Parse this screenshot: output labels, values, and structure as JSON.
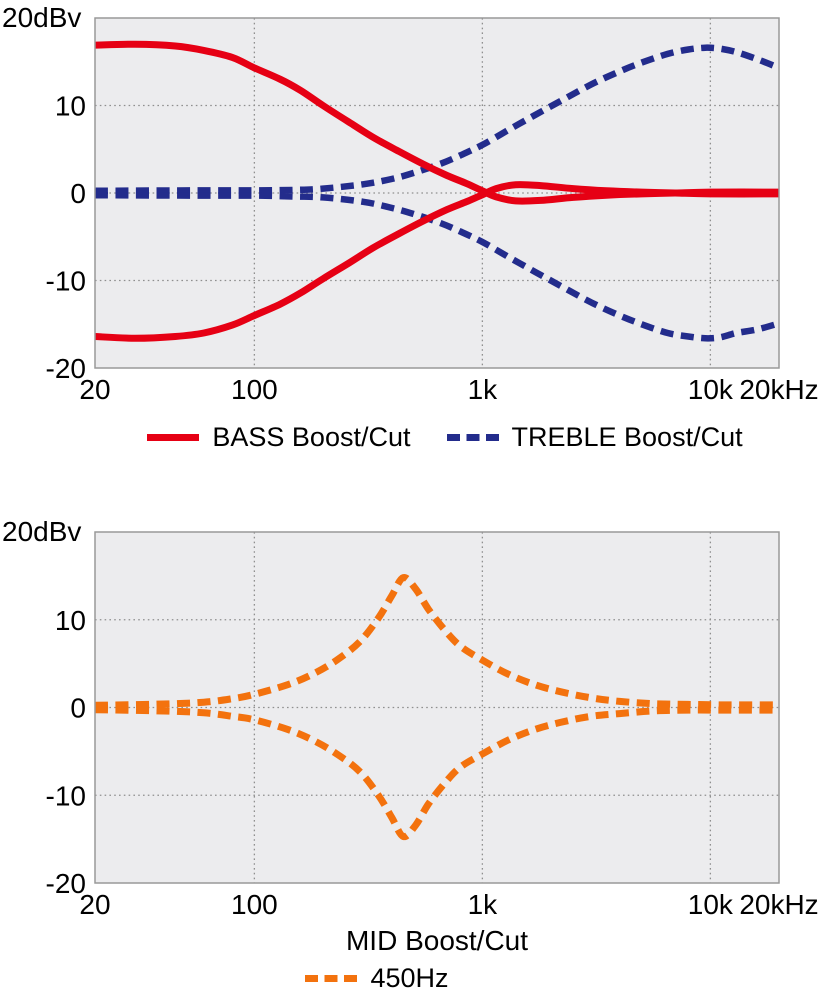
{
  "figure": {
    "top_chart_y_title": "20dBv",
    "bottom_chart_y_title": "20dBv"
  },
  "chart_data": [
    {
      "type": "line",
      "y_axis_title": "20dBv",
      "x_scale": "log",
      "xlim": [
        20,
        20000
      ],
      "ylim": [
        -20,
        20
      ],
      "x_ticks": [
        {
          "v": 20,
          "label": "20"
        },
        {
          "v": 100,
          "label": "100"
        },
        {
          "v": 1000,
          "label": "1k"
        },
        {
          "v": 10000,
          "label": "10k"
        },
        {
          "v": 20000,
          "label": "20kHz"
        }
      ],
      "y_ticks": [
        {
          "v": 10,
          "label": "10"
        },
        {
          "v": 0,
          "label": "0"
        },
        {
          "v": -10,
          "label": "-10"
        },
        {
          "v": -20,
          "label": "-20"
        }
      ],
      "grid_x": [
        100,
        1000,
        10000
      ],
      "grid_y": [
        10,
        0,
        -10
      ],
      "plot_bg": "#ececee",
      "grid_color": "#8f8f8f",
      "border_color": "#999999",
      "legend_position": "bottom",
      "legend": [
        {
          "label": "BASS Boost/Cut",
          "color": "#e60014",
          "dash": false
        },
        {
          "label": "TREBLE Boost/Cut",
          "color": "#232c8c",
          "dash": true
        }
      ],
      "series": [
        {
          "name": "treble-boost",
          "color": "#232c8c",
          "dash": true,
          "width": 6.5,
          "points": [
            [
              20,
              0.25
            ],
            [
              60,
              0.3
            ],
            [
              100,
              0.3
            ],
            [
              150,
              0.35
            ],
            [
              200,
              0.5
            ],
            [
              300,
              1.0
            ],
            [
              400,
              1.6
            ],
            [
              500,
              2.3
            ],
            [
              650,
              3.3
            ],
            [
              800,
              4.3
            ],
            [
              1000,
              5.5
            ],
            [
              1300,
              7.2
            ],
            [
              1700,
              8.9
            ],
            [
              2200,
              10.5
            ],
            [
              3000,
              12.4
            ],
            [
              4000,
              13.9
            ],
            [
              5000,
              14.9
            ],
            [
              6500,
              15.9
            ],
            [
              8000,
              16.4
            ],
            [
              9500,
              16.6
            ],
            [
              11000,
              16.5
            ],
            [
              13000,
              16.1
            ],
            [
              16000,
              15.3
            ],
            [
              20000,
              14.3
            ]
          ]
        },
        {
          "name": "treble-cut",
          "color": "#232c8c",
          "dash": true,
          "width": 6.5,
          "points": [
            [
              20,
              -0.25
            ],
            [
              60,
              -0.3
            ],
            [
              100,
              -0.3
            ],
            [
              150,
              -0.4
            ],
            [
              200,
              -0.5
            ],
            [
              300,
              -1.0
            ],
            [
              400,
              -1.7
            ],
            [
              500,
              -2.4
            ],
            [
              650,
              -3.4
            ],
            [
              800,
              -4.4
            ],
            [
              1000,
              -5.6
            ],
            [
              1300,
              -7.3
            ],
            [
              1700,
              -9.0
            ],
            [
              2200,
              -10.6
            ],
            [
              3000,
              -12.5
            ],
            [
              4000,
              -14.0
            ],
            [
              5000,
              -15.0
            ],
            [
              6500,
              -16.0
            ],
            [
              8000,
              -16.4
            ],
            [
              9500,
              -16.6
            ],
            [
              11000,
              -16.5
            ],
            [
              13000,
              -16.0
            ],
            [
              16000,
              -15.6
            ],
            [
              20000,
              -14.9
            ]
          ]
        },
        {
          "name": "bass-boost",
          "color": "#e60014",
          "dash": false,
          "width": 7,
          "points": [
            [
              20,
              16.9
            ],
            [
              30,
              17.0
            ],
            [
              45,
              16.8
            ],
            [
              60,
              16.3
            ],
            [
              80,
              15.5
            ],
            [
              100,
              14.3
            ],
            [
              130,
              13.0
            ],
            [
              160,
              11.7
            ],
            [
              200,
              10.0
            ],
            [
              260,
              8.1
            ],
            [
              330,
              6.4
            ],
            [
              420,
              4.9
            ],
            [
              550,
              3.3
            ],
            [
              700,
              2.0
            ],
            [
              850,
              1.1
            ],
            [
              1000,
              0.25
            ],
            [
              1150,
              -0.45
            ],
            [
              1400,
              -0.9
            ],
            [
              1800,
              -0.85
            ],
            [
              2500,
              -0.5
            ],
            [
              3500,
              -0.25
            ],
            [
              5000,
              -0.1
            ],
            [
              7000,
              0
            ],
            [
              10000,
              0.1
            ],
            [
              20000,
              0.1
            ]
          ]
        },
        {
          "name": "bass-cut",
          "color": "#e60014",
          "dash": false,
          "width": 7,
          "points": [
            [
              20,
              -16.4
            ],
            [
              30,
              -16.6
            ],
            [
              45,
              -16.4
            ],
            [
              60,
              -16.0
            ],
            [
              80,
              -15.1
            ],
            [
              100,
              -14.0
            ],
            [
              130,
              -12.7
            ],
            [
              160,
              -11.4
            ],
            [
              200,
              -9.8
            ],
            [
              260,
              -8.0
            ],
            [
              330,
              -6.3
            ],
            [
              420,
              -4.8
            ],
            [
              550,
              -3.2
            ],
            [
              700,
              -1.9
            ],
            [
              850,
              -1.0
            ],
            [
              1000,
              -0.2
            ],
            [
              1150,
              0.5
            ],
            [
              1400,
              0.95
            ],
            [
              1800,
              0.85
            ],
            [
              2500,
              0.5
            ],
            [
              3500,
              0.25
            ],
            [
              5000,
              0.1
            ],
            [
              7000,
              0
            ],
            [
              10000,
              -0.1
            ],
            [
              20000,
              -0.1
            ]
          ]
        }
      ]
    },
    {
      "type": "line",
      "y_axis_title": "20dBv",
      "x_axis_caption": "MID Boost/Cut",
      "x_scale": "log",
      "xlim": [
        20,
        20000
      ],
      "ylim": [
        -20,
        20
      ],
      "x_ticks": [
        {
          "v": 20,
          "label": "20"
        },
        {
          "v": 100,
          "label": "100"
        },
        {
          "v": 1000,
          "label": "1k"
        },
        {
          "v": 10000,
          "label": "10k"
        },
        {
          "v": 20000,
          "label": "20kHz"
        }
      ],
      "y_ticks": [
        {
          "v": 10,
          "label": "10"
        },
        {
          "v": 0,
          "label": "0"
        },
        {
          "v": -10,
          "label": "-10"
        },
        {
          "v": -20,
          "label": "-20"
        }
      ],
      "grid_x": [
        100,
        1000,
        10000
      ],
      "grid_y": [
        10,
        0,
        -10
      ],
      "plot_bg": "#ececee",
      "grid_color": "#8f8f8f",
      "border_color": "#999999",
      "legend_position": "bottom",
      "legend": [
        {
          "label": "450Hz",
          "color": "#f3720e",
          "dash": true
        }
      ],
      "series": [
        {
          "name": "mid-boost",
          "color": "#f3720e",
          "dash": true,
          "width": 7,
          "points": [
            [
              20,
              0.25
            ],
            [
              40,
              0.4
            ],
            [
              60,
              0.6
            ],
            [
              80,
              1.0
            ],
            [
              100,
              1.5
            ],
            [
              140,
              2.6
            ],
            [
              180,
              3.8
            ],
            [
              230,
              5.4
            ],
            [
              290,
              7.5
            ],
            [
              350,
              10.2
            ],
            [
              400,
              12.7
            ],
            [
              450,
              14.8
            ],
            [
              510,
              13.5
            ],
            [
              580,
              11.2
            ],
            [
              680,
              8.9
            ],
            [
              800,
              7.0
            ],
            [
              1000,
              5.4
            ],
            [
              1300,
              3.8
            ],
            [
              1700,
              2.6
            ],
            [
              2200,
              1.8
            ],
            [
              3000,
              1.1
            ],
            [
              4000,
              0.7
            ],
            [
              5500,
              0.45
            ],
            [
              8000,
              0.35
            ],
            [
              12000,
              0.3
            ],
            [
              20000,
              0.3
            ]
          ]
        },
        {
          "name": "mid-cut",
          "color": "#f3720e",
          "dash": true,
          "width": 7,
          "points": [
            [
              20,
              -0.25
            ],
            [
              40,
              -0.4
            ],
            [
              60,
              -0.6
            ],
            [
              80,
              -1.0
            ],
            [
              100,
              -1.4
            ],
            [
              140,
              -2.5
            ],
            [
              180,
              -3.7
            ],
            [
              230,
              -5.3
            ],
            [
              290,
              -7.3
            ],
            [
              350,
              -10.0
            ],
            [
              400,
              -12.5
            ],
            [
              450,
              -14.7
            ],
            [
              510,
              -13.4
            ],
            [
              580,
              -11.0
            ],
            [
              680,
              -8.7
            ],
            [
              800,
              -6.8
            ],
            [
              1000,
              -5.3
            ],
            [
              1300,
              -3.7
            ],
            [
              1700,
              -2.5
            ],
            [
              2200,
              -1.7
            ],
            [
              3000,
              -1.0
            ],
            [
              4000,
              -0.7
            ],
            [
              5500,
              -0.4
            ],
            [
              8000,
              -0.3
            ],
            [
              12000,
              -0.3
            ],
            [
              20000,
              -0.3
            ]
          ]
        }
      ]
    }
  ]
}
